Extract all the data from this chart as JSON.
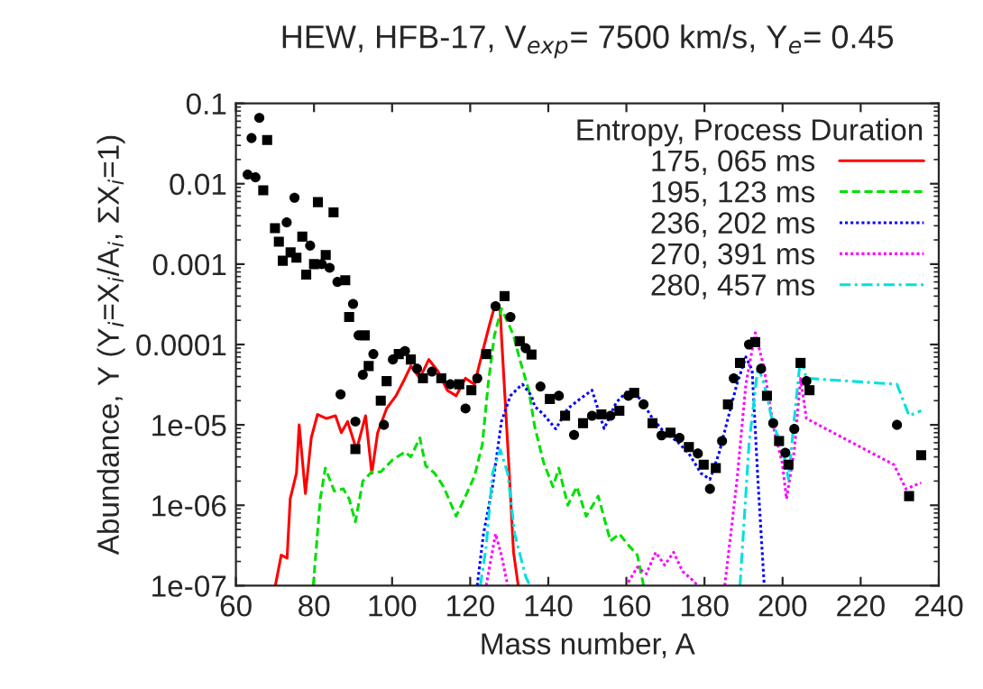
{
  "chart_data": {
    "type": "line",
    "title": "HEW, HFB-17, V$_{exp}$= 7500 km/s, Y$_{e}$= 0.45",
    "xlabel": "Mass number, A",
    "ylabel": "Abundance, Y (Y$_{i}$=X$_{i}$/A$_{i}$, ΣX$_{i}$=1)",
    "legend_title": "Entropy, Process Duration",
    "legend": "top right",
    "log": "y",
    "grid": false,
    "xlim": [
      60,
      240
    ],
    "xticks": [
      60,
      80,
      100,
      120,
      140,
      160,
      180,
      200,
      220,
      240
    ],
    "ylim": [
      1e-07,
      0.1
    ],
    "yticks": [
      {
        "value": 1e-07,
        "label": "1e-07"
      },
      {
        "value": 1e-06,
        "label": "1e-06"
      },
      {
        "value": 1e-05,
        "label": "1e-05"
      },
      0.0001,
      0.001,
      0.01,
      0.1
    ],
    "series": [
      {
        "name": "175, 065 ms",
        "color": "#ff0000",
        "line_style": "solid",
        "x": [
          70.1,
          71.6,
          73.1,
          73.9,
          75.5,
          76.2,
          77.8,
          79.3,
          80.9,
          83.2,
          85.5,
          87,
          88.6,
          90.9,
          93.2,
          94.8,
          96.3,
          98.6,
          101,
          103.3,
          104.8,
          107.1,
          109.4,
          111.8,
          114.1,
          116.4,
          118.8,
          121.1,
          123.4,
          125,
          126.5,
          127.7,
          128,
          129.6,
          131.1,
          132.3
        ],
        "values": [
          1e-07,
          2.4e-07,
          2.2e-07,
          1.2e-06,
          2.5e-06,
          1e-05,
          1.4e-06,
          6.9e-06,
          1.35e-05,
          1.2e-05,
          1.3e-05,
          8e-06,
          1.1e-05,
          4.9e-06,
          1.3e-05,
          2.5e-06,
          8e-06,
          1.6e-05,
          2.3e-05,
          3.8e-05,
          5.4e-05,
          3.8e-05,
          6.5e-05,
          4.6e-05,
          2.7e-05,
          2.3e-05,
          3.8e-05,
          3.2e-05,
          9e-05,
          0.00018,
          0.00033,
          0.00026,
          0.00013,
          5.7e-06,
          2.6e-07,
          1e-07
        ]
      },
      {
        "name": "195, 123 ms",
        "color": "#00e000",
        "line_style": "dashed",
        "x": [
          79.8,
          81.6,
          82.9,
          85.2,
          87.5,
          89,
          90.6,
          92.5,
          94.8,
          97.1,
          100.2,
          103.3,
          104.8,
          107.1,
          108.6,
          110.9,
          113.2,
          116.4,
          118.8,
          121.1,
          123.1,
          124.6,
          126.2,
          128,
          130.3,
          131.1,
          132.7,
          135,
          136.5,
          138.8,
          141.2,
          142.7,
          145,
          147.3,
          149.7,
          152.8,
          155.9,
          158.2,
          160.5,
          162.8,
          164.4
        ],
        "values": [
          1e-07,
          1.2e-06,
          2.9e-06,
          1.5e-06,
          1.6e-06,
          1.2e-06,
          6.2e-07,
          2e-06,
          2.6e-06,
          2.6e-06,
          3.7e-06,
          4.6e-06,
          4e-06,
          6.9e-06,
          3.1e-06,
          2.5e-06,
          1.7e-06,
          7.3e-07,
          1.3e-06,
          2.3e-06,
          5.7e-06,
          3.2e-05,
          0.00013,
          0.00028,
          0.00016,
          0.00013,
          6.5e-05,
          2.7e-05,
          9.6e-06,
          3.4e-06,
          1.7e-06,
          2.9e-06,
          1e-06,
          1.7e-06,
          7.3e-07,
          1.3e-06,
          3.6e-07,
          4.4e-07,
          3.2e-07,
          2.4e-07,
          1e-07
        ]
      },
      {
        "name": "236, 202 ms",
        "color": "#0000ff",
        "line_style": "dotted",
        "x": [
          121.8,
          123.4,
          125.7,
          128,
          130.3,
          132.7,
          133.4,
          135.7,
          136.5,
          138.8,
          141.9,
          145,
          148.1,
          151.2,
          154.3,
          157.4,
          160.5,
          163.6,
          166.7,
          169.8,
          172.9,
          176,
          179.1,
          181.4,
          183.7,
          186,
          188.3,
          190.6,
          192.2,
          193.7,
          195.3
        ],
        "values": [
          1e-07,
          4.4e-07,
          1.7e-06,
          1.1e-05,
          2.3e-05,
          3e-05,
          3.2e-05,
          2.3e-05,
          1.7e-05,
          1.35e-05,
          8.9e-06,
          1.6e-05,
          2.1e-05,
          2.7e-05,
          9e-06,
          1.9e-05,
          2.7e-05,
          2.1e-05,
          1.2e-05,
          8e-06,
          6.3e-06,
          4.4e-06,
          2.5e-06,
          2.1e-06,
          4.4e-06,
          1.2e-05,
          3.2e-05,
          7e-05,
          4.8e-05,
          2e-06,
          1e-07
        ]
      },
      {
        "name": "270, 391 ms",
        "color": "#ff00ff",
        "line_style": "dotted",
        "x": [
          124.1,
          126.5,
          128,
          129.6,
          145,
          160.5,
          162.8,
          165.1,
          167.5,
          169.8,
          172.1,
          174.4,
          176.7,
          178.3,
          182,
          185.2,
          188.3,
          190.6,
          193,
          195.3,
          197.6,
          199.9,
          201,
          203,
          204.6,
          206.1,
          228.5,
          231.6,
          235.5
        ],
        "values": [
          1e-07,
          4.4e-07,
          2.4e-07,
          1e-07,
          null,
          1.1e-07,
          1.7e-07,
          1.4e-07,
          2.6e-07,
          1.8e-07,
          2.6e-07,
          1.5e-07,
          1.2e-07,
          1e-07,
          null,
          1e-07,
          2e-06,
          3.2e-05,
          0.00014,
          5e-05,
          9.6e-06,
          3.4e-06,
          1.2e-06,
          4.8e-06,
          3.8e-05,
          1.2e-05,
          3.2e-06,
          1.6e-06,
          1.9e-06
        ]
      },
      {
        "name": "280, 457 ms",
        "color": "#00e0e0",
        "line_style": "dashdot",
        "x": [
          122.6,
          124.1,
          125.7,
          127.7,
          129.6,
          131.4,
          134.2,
          135.3,
          160,
          189.1,
          191.4,
          193.7,
          195.3,
          197.6,
          199.9,
          201.5,
          203,
          204.6,
          206.1,
          229.3,
          232.4,
          235.5
        ],
        "values": [
          1e-07,
          3.1e-07,
          2.5e-06,
          4.9e-06,
          2.5e-06,
          4.4e-07,
          1.3e-07,
          1e-07,
          null,
          1e-07,
          5.7e-06,
          5.4e-05,
          3.2e-05,
          1e-05,
          5.5e-06,
          2.1e-06,
          1.2e-05,
          7e-05,
          3.8e-05,
          3.2e-05,
          1.3e-05,
          1.5e-05
        ]
      },
      {
        "type": "scatter",
        "color": "#000000",
        "marker": "circle",
        "x": [
          63,
          64,
          65,
          66,
          73,
          75,
          79,
          82,
          84,
          86,
          90,
          91.4,
          86.8,
          90.6,
          92.5,
          95.2,
          97.9,
          100.2,
          103.3,
          106.4,
          110.2,
          114.9,
          118.8,
          121.8,
          126.5,
          130.3,
          134.2,
          138,
          142.7,
          146.6,
          151.2,
          155.9,
          160.5,
          164.4,
          169,
          173.6,
          178.3,
          181.4,
          184.5,
          187.5,
          191.4,
          194.5,
          197.6,
          200.7,
          203,
          206.1,
          229.3
        ],
        "values": [
          0.013,
          0.037,
          0.012,
          0.066,
          0.0033,
          0.0067,
          0.0017,
          0.001,
          0.0009,
          0.0006,
          0.00032,
          0.00013,
          2.4e-05,
          1.1e-05,
          4.2e-05,
          7.6e-05,
          1e-05,
          6.5e-05,
          8.3e-05,
          5e-05,
          4.6e-05,
          3.2e-05,
          1.6e-05,
          3.8e-05,
          0.0003,
          0.00022,
          9e-05,
          3e-05,
          2.3e-05,
          7.5e-06,
          1.3e-05,
          1.3e-05,
          2.3e-05,
          1.8e-05,
          7.4e-06,
          6.9e-06,
          4.4e-06,
          1.6e-06,
          6.3e-06,
          3.8e-05,
          0.0001,
          5e-05,
          1.05e-05,
          4.5e-06,
          8.9e-06,
          3.5e-05,
          1e-05
        ]
      },
      {
        "type": "scatter",
        "color": "#000000",
        "marker": "square",
        "x": [
          67,
          68,
          70,
          71,
          72,
          74,
          75.5,
          77,
          78,
          80,
          81,
          83,
          85,
          88,
          89,
          93,
          90.6,
          94,
          97.1,
          98.6,
          101.7,
          104.8,
          107.9,
          112.6,
          117.2,
          120.3,
          124.1,
          128.8,
          132.7,
          135.7,
          140.4,
          144.3,
          148.9,
          153.6,
          158.2,
          162,
          166.7,
          171.3,
          176,
          179.8,
          182.9,
          186,
          189.1,
          193,
          196,
          199.1,
          201.5,
          204.6,
          206.9,
          232.4,
          235.5
        ],
        "values": [
          0.0083,
          0.035,
          0.0028,
          0.0019,
          0.0011,
          0.0014,
          0.0012,
          0.0022,
          0.00074,
          0.001,
          0.0059,
          0.0013,
          0.0044,
          0.00063,
          0.00022,
          0.00013,
          5e-06,
          5.4e-05,
          2e-05,
          3.5e-05,
          7.6e-05,
          6.5e-05,
          3.8e-05,
          3.8e-05,
          3.2e-05,
          2.7e-05,
          7.6e-05,
          0.0004,
          0.00011,
          7.5e-05,
          2.1e-05,
          1.3e-05,
          1.05e-05,
          1.35e-05,
          1.5e-05,
          2.5e-05,
          1.05e-05,
          8e-06,
          5.3e-06,
          3.2e-06,
          2.9e-06,
          1.8e-05,
          5.9e-05,
          0.000107,
          2.3e-05,
          6.3e-06,
          3.2e-06,
          5.9e-05,
          2.7e-05,
          1.3e-06,
          4.2e-06
        ]
      }
    ]
  }
}
